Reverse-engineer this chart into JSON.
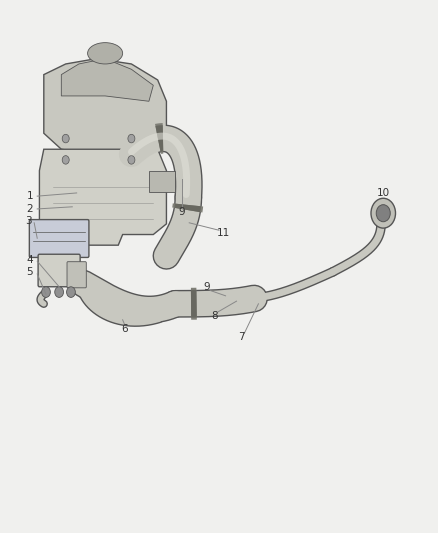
{
  "background_color": "#f0f0ee",
  "figsize": [
    4.38,
    5.33
  ],
  "dpi": 100,
  "line_color": "#555555",
  "label_color": "#333333",
  "label_fs": 7.5,
  "callout_line_color": "#888888",
  "callout_lw": 0.7,
  "hose_fill": "#c8c8c0",
  "hose_edge": "#555555",
  "clamp_color": "#777770",
  "engine_face": "#d0d0c8",
  "engine_edge": "#555555",
  "cooler_face": "#c8ccd8",
  "filter_face": "#d0d0c8",
  "fitting_face": "#c0c0b8",
  "fitting_inner": "#909088"
}
